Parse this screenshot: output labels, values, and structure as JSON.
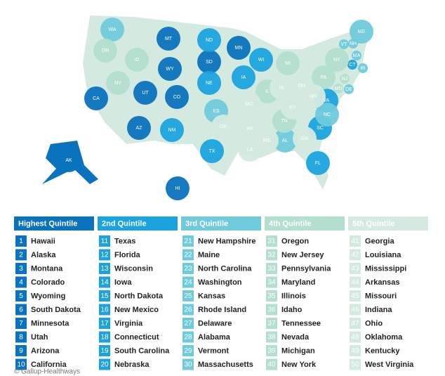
{
  "map": {
    "states": [
      {
        "label": "HI",
        "color": "#0b73bd"
      },
      {
        "label": "AK",
        "color": "#0b73bd"
      },
      {
        "label": "MT",
        "color": "#0b73bd"
      },
      {
        "label": "CO",
        "color": "#0b73bd"
      },
      {
        "label": "WY",
        "color": "#0b73bd"
      },
      {
        "label": "SD",
        "color": "#0b73bd"
      },
      {
        "label": "MN",
        "color": "#0b73bd"
      },
      {
        "label": "UT",
        "color": "#0b73bd"
      },
      {
        "label": "AZ",
        "color": "#0b73bd"
      },
      {
        "label": "CA",
        "color": "#0b73bd"
      },
      {
        "label": "TX",
        "color": "#1ba3df"
      },
      {
        "label": "FL",
        "color": "#1ba3df"
      },
      {
        "label": "WI",
        "color": "#1ba3df"
      },
      {
        "label": "IA",
        "color": "#1ba3df"
      },
      {
        "label": "ND",
        "color": "#1ba3df"
      },
      {
        "label": "NM",
        "color": "#1ba3df"
      },
      {
        "label": "VA",
        "color": "#1ba3df"
      },
      {
        "label": "CT",
        "color": "#1ba3df"
      },
      {
        "label": "SC",
        "color": "#1ba3df"
      },
      {
        "label": "NE",
        "color": "#1ba3df"
      },
      {
        "label": "NH",
        "color": "#6fcadb"
      },
      {
        "label": "ME",
        "color": "#6fcadb"
      },
      {
        "label": "NC",
        "color": "#6fcadb"
      },
      {
        "label": "WA",
        "color": "#6fcadb"
      },
      {
        "label": "KS",
        "color": "#6fcadb"
      },
      {
        "label": "RI",
        "color": "#6fcadb"
      },
      {
        "label": "DE",
        "color": "#6fcadb"
      },
      {
        "label": "AL",
        "color": "#6fcadb"
      },
      {
        "label": "VT",
        "color": "#6fcadb"
      },
      {
        "label": "MA",
        "color": "#6fcadb"
      },
      {
        "label": "OR",
        "color": "#b3dfcf"
      },
      {
        "label": "NJ",
        "color": "#b3dfcf"
      },
      {
        "label": "PA",
        "color": "#b3dfcf"
      },
      {
        "label": "MD",
        "color": "#b3dfcf"
      },
      {
        "label": "IL",
        "color": "#b3dfcf"
      },
      {
        "label": "ID",
        "color": "#b3dfcf"
      },
      {
        "label": "TN",
        "color": "#b3dfcf"
      },
      {
        "label": "NV",
        "color": "#b3dfcf"
      },
      {
        "label": "MI",
        "color": "#b3dfcf"
      },
      {
        "label": "NY",
        "color": "#b3dfcf"
      },
      {
        "label": "GA",
        "color": "#d4eae0"
      },
      {
        "label": "LA",
        "color": "#d4eae0"
      },
      {
        "label": "MS",
        "color": "#d4eae0"
      },
      {
        "label": "AR",
        "color": "#d4eae0"
      },
      {
        "label": "MO",
        "color": "#d4eae0"
      },
      {
        "label": "IN",
        "color": "#d4eae0"
      },
      {
        "label": "OH",
        "color": "#d4eae0"
      },
      {
        "label": "OK",
        "color": "#d4eae0"
      },
      {
        "label": "KY",
        "color": "#d4eae0"
      },
      {
        "label": "WV",
        "color": "#d4eae0"
      }
    ]
  },
  "table": {
    "columns": [
      {
        "header": "Highest Quintile",
        "color": "#0b73bd",
        "rows": [
          [
            "1",
            "Hawaii"
          ],
          [
            "2",
            "Alaska"
          ],
          [
            "3",
            "Montana"
          ],
          [
            "4",
            "Colorado"
          ],
          [
            "5",
            "Wyoming"
          ],
          [
            "6",
            "South Dakota"
          ],
          [
            "7",
            "Minnesota"
          ],
          [
            "8",
            "Utah"
          ],
          [
            "9",
            "Arizona"
          ],
          [
            "10",
            "California"
          ]
        ]
      },
      {
        "header": "2nd Quintile",
        "color": "#1ba3df",
        "rows": [
          [
            "11",
            "Texas"
          ],
          [
            "12",
            "Florida"
          ],
          [
            "13",
            "Wisconsin"
          ],
          [
            "14",
            "Iowa"
          ],
          [
            "15",
            "North Dakota"
          ],
          [
            "16",
            "New Mexico"
          ],
          [
            "17",
            "Virginia"
          ],
          [
            "18",
            "Connecticut"
          ],
          [
            "19",
            "South Carolina"
          ],
          [
            "20",
            "Nebraska"
          ]
        ]
      },
      {
        "header": "3rd Quintile",
        "color": "#6fcadb",
        "rows": [
          [
            "21",
            "New Hampshire"
          ],
          [
            "22",
            "Maine"
          ],
          [
            "23",
            "North Carolina"
          ],
          [
            "24",
            "Washington"
          ],
          [
            "25",
            "Kansas"
          ],
          [
            "26",
            "Rhode Island"
          ],
          [
            "27",
            "Delaware"
          ],
          [
            "28",
            "Alabama"
          ],
          [
            "29",
            "Vermont"
          ],
          [
            "30",
            "Massachusetts"
          ]
        ]
      },
      {
        "header": "4th Quintile",
        "color": "#b3dfcf",
        "rows": [
          [
            "31",
            "Oregon"
          ],
          [
            "32",
            "New Jersey"
          ],
          [
            "33",
            "Pennsylvania"
          ],
          [
            "34",
            "Maryland"
          ],
          [
            "35",
            "Illinois"
          ],
          [
            "36",
            "Idaho"
          ],
          [
            "37",
            "Tennessee"
          ],
          [
            "38",
            "Nevada"
          ],
          [
            "39",
            "Michigan"
          ],
          [
            "40",
            "New York"
          ]
        ]
      },
      {
        "header": "5th Quintile",
        "color": "#d4eae0",
        "rows": [
          [
            "41",
            "Georgia"
          ],
          [
            "42",
            "Louisiana"
          ],
          [
            "43",
            "Mississippi"
          ],
          [
            "44",
            "Arkansas"
          ],
          [
            "45",
            "Missouri"
          ],
          [
            "46",
            "Indiana"
          ],
          [
            "47",
            "Ohio"
          ],
          [
            "48",
            "Oklahoma"
          ],
          [
            "49",
            "Kentucky"
          ],
          [
            "50",
            "West Virginia"
          ]
        ]
      }
    ]
  },
  "credit": "© Gallup-Healthways"
}
